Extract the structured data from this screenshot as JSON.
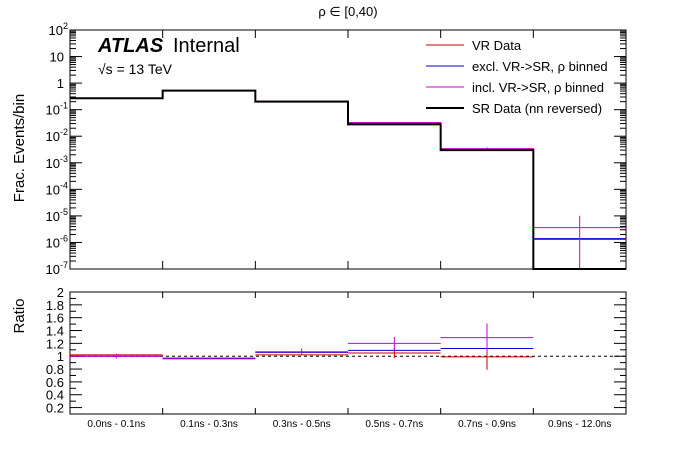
{
  "chart_data": {
    "type": "histogram",
    "title": "ρ ∈ [0,40)",
    "categories": [
      "0.0ns - 0.1ns",
      "0.1ns - 0.3ns",
      "0.3ns - 0.5ns",
      "0.5ns - 0.7ns",
      "0.7ns - 0.9ns",
      "0.9ns - 12.0ns"
    ],
    "label": {
      "atlas": "ATLAS",
      "status": "Internal",
      "energy": "√s = 13 TeV"
    },
    "top_panel": {
      "ylabel": "Frac. Events/bin",
      "yscale": "log",
      "ylim": [
        1e-07,
        100
      ],
      "tick_labels": [
        {
          "exp": -7,
          "text": "10",
          "sup": "-7"
        },
        {
          "exp": -6,
          "text": "10",
          "sup": "-6"
        },
        {
          "exp": -5,
          "text": "10",
          "sup": "-5"
        },
        {
          "exp": -4,
          "text": "10",
          "sup": "-4"
        },
        {
          "exp": -3,
          "text": "10",
          "sup": "-3"
        },
        {
          "exp": -2,
          "text": "10",
          "sup": "-2"
        },
        {
          "exp": -1,
          "text": "10",
          "sup": "-1"
        },
        {
          "exp": 0,
          "text": "1",
          "sup": ""
        },
        {
          "exp": 1,
          "text": "10",
          "sup": ""
        },
        {
          "exp": 2,
          "text": "10",
          "sup": "2"
        }
      ],
      "series": [
        {
          "name": "VR Data",
          "color": "#cc0000",
          "width": 1,
          "values": [
            0.27,
            0.53,
            0.2,
            0.031,
            0.0031,
            1.3e-06
          ],
          "errors": [
            0,
            0,
            0,
            0,
            0,
            0
          ]
        },
        {
          "name": "excl. VR->SR, ρ binned",
          "color": "#0000cc",
          "width": 1,
          "values": [
            0.27,
            0.52,
            0.21,
            0.032,
            0.0033,
            1.4e-06
          ],
          "errors": [
            0,
            0,
            0,
            0,
            0,
            0
          ]
        },
        {
          "name": "incl. VR->SR, ρ binned",
          "color": "#cc00cc",
          "width": 1,
          "values": [
            0.27,
            0.52,
            0.21,
            0.033,
            0.0034,
            3.6e-06
          ],
          "errors": [
            0,
            0,
            0,
            0.001,
            0.0004,
            6.5e-06
          ]
        },
        {
          "name": "SR Data (nn reversed)",
          "color": "#000000",
          "width": 2,
          "values": [
            0.27,
            0.52,
            0.2,
            0.028,
            0.003,
            1e-07
          ],
          "errors": [
            0,
            0,
            0,
            0,
            0.0002,
            0
          ]
        }
      ]
    },
    "ratio_panel": {
      "ylabel": "Ratio",
      "ylim": [
        0.1,
        2.0
      ],
      "reference_line": 1,
      "tick_labels": [
        "0.2",
        "0.4",
        "0.6",
        "0.8",
        "1",
        "1.2",
        "1.4",
        "1.6",
        "1.8",
        "2"
      ],
      "tick_values": [
        0.2,
        0.4,
        0.6,
        0.8,
        1.0,
        1.2,
        1.4,
        1.6,
        1.8,
        2.0
      ],
      "series": [
        {
          "name": "VR Data",
          "color": "#cc0000",
          "values": [
            1.02,
            0.97,
            1.02,
            1.05,
            0.99,
            null
          ],
          "errors": [
            0,
            0,
            0,
            0.08,
            0.2,
            0
          ]
        },
        {
          "name": "excl. VR->SR, ρ binned",
          "color": "#0000cc",
          "values": [
            1.0,
            0.96,
            1.06,
            1.09,
            1.12,
            null
          ],
          "errors": [
            0,
            0,
            0,
            0,
            0,
            0
          ]
        },
        {
          "name": "incl. VR->SR, ρ binned",
          "color": "#cc00cc",
          "values": [
            1.0,
            0.97,
            1.07,
            1.2,
            1.29,
            null
          ],
          "errors": [
            0.04,
            0,
            0.05,
            0.1,
            0.22,
            0
          ]
        }
      ]
    }
  }
}
